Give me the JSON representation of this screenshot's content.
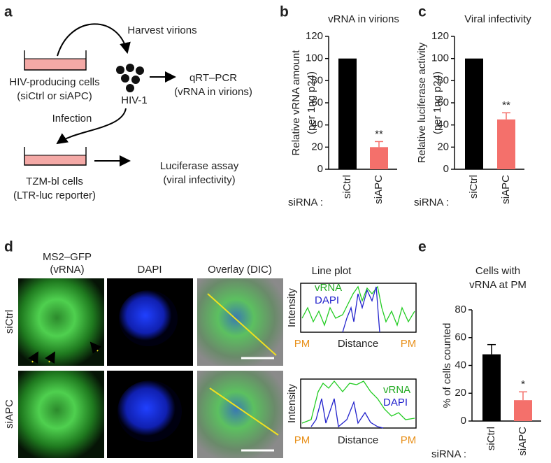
{
  "panel_labels": [
    "a",
    "b",
    "c",
    "d",
    "e"
  ],
  "diagram": {
    "harvest": "Harvest virions",
    "producer": [
      "HIV-producing cells",
      "(siCtrl or siAPC)"
    ],
    "virus": "HIV-1",
    "qpcr": [
      "qRT–PCR",
      "(vRNA in virions)"
    ],
    "infection": "Infection",
    "target": [
      "TZM-bl cells",
      "(LTR-luc reporter)"
    ],
    "assay": [
      "Luciferase assay",
      "(viral infectivity)"
    ]
  },
  "chart_data": [
    {
      "type": "bar",
      "title": "vRNA in virions",
      "y_label": [
        "Relative vRNA amount",
        "(per 1ng p24)"
      ],
      "x_label": "siRNA :",
      "categories": [
        "siCtrl",
        "siAPC"
      ],
      "values": [
        100,
        20
      ],
      "errors": [
        null,
        5
      ],
      "colors": [
        "#000000",
        "#f4706b"
      ],
      "significance": [
        null,
        "**"
      ],
      "ylim": [
        0,
        120
      ],
      "yticks": [
        0,
        20,
        40,
        60,
        80,
        100,
        120
      ]
    },
    {
      "type": "bar",
      "title": "Viral infectivity",
      "y_label": [
        "Relative luciferase activity",
        "(per 1ng p24)"
      ],
      "x_label": "siRNA :",
      "categories": [
        "siCtrl",
        "siAPC"
      ],
      "values": [
        100,
        45
      ],
      "errors": [
        null,
        6
      ],
      "colors": [
        "#000000",
        "#f4706b"
      ],
      "significance": [
        null,
        "**"
      ],
      "ylim": [
        0,
        120
      ],
      "yticks": [
        0,
        20,
        40,
        60,
        80,
        100,
        120
      ]
    },
    {
      "type": "bar",
      "title": [
        "Cells with",
        "vRNA at PM"
      ],
      "y_label": [
        "% of cells counted"
      ],
      "x_label": "siRNA :",
      "categories": [
        "siCtrl",
        "siAPC"
      ],
      "values": [
        48,
        15
      ],
      "errors": [
        7,
        6
      ],
      "colors": [
        "#000000",
        "#f4706b"
      ],
      "significance": [
        null,
        "*"
      ],
      "ylim": [
        0,
        80
      ],
      "yticks": [
        0,
        20,
        40,
        60,
        80
      ]
    }
  ],
  "microscopy": {
    "columns": [
      [
        "MS2–GFP",
        "(vRNA)"
      ],
      "DAPI",
      "Overlay (DIC)"
    ],
    "rows": [
      "siCtrl",
      "siAPC"
    ],
    "line_plot": {
      "title": "Line plot",
      "y_label": "Intensity",
      "x_label": "Distance",
      "marker": "PM",
      "series": [
        "vRNA",
        "DAPI"
      ]
    }
  }
}
